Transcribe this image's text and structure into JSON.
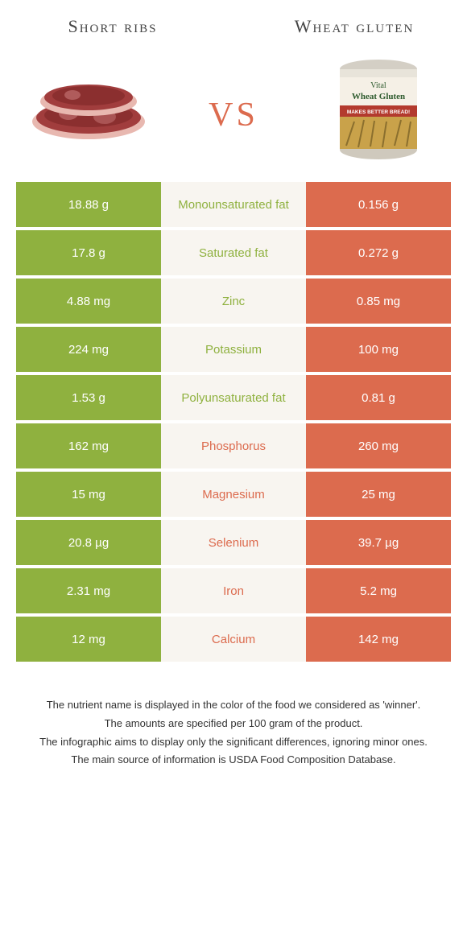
{
  "colors": {
    "left": "#8fb13f",
    "right": "#dc6b4e",
    "center_bg": "#f8f5f0",
    "vs": "#dc6b4e"
  },
  "header": {
    "left": "Short ribs",
    "right": "Wheat gluten",
    "vs": "vs"
  },
  "product_right": {
    "brand_top": "Vital",
    "brand_main": "Wheat Gluten",
    "banner": "MAKES BETTER BREAD!"
  },
  "rows": [
    {
      "left": "18.88 g",
      "label": "Monounsaturated fat",
      "right": "0.156 g",
      "winner": "left"
    },
    {
      "left": "17.8 g",
      "label": "Saturated fat",
      "right": "0.272 g",
      "winner": "left"
    },
    {
      "left": "4.88 mg",
      "label": "Zinc",
      "right": "0.85 mg",
      "winner": "left"
    },
    {
      "left": "224 mg",
      "label": "Potassium",
      "right": "100 mg",
      "winner": "left"
    },
    {
      "left": "1.53 g",
      "label": "Polyunsaturated fat",
      "right": "0.81 g",
      "winner": "left"
    },
    {
      "left": "162 mg",
      "label": "Phosphorus",
      "right": "260 mg",
      "winner": "right"
    },
    {
      "left": "15 mg",
      "label": "Magnesium",
      "right": "25 mg",
      "winner": "right"
    },
    {
      "left": "20.8 µg",
      "label": "Selenium",
      "right": "39.7 µg",
      "winner": "right"
    },
    {
      "left": "2.31 mg",
      "label": "Iron",
      "right": "5.2 mg",
      "winner": "right"
    },
    {
      "left": "12 mg",
      "label": "Calcium",
      "right": "142 mg",
      "winner": "right"
    }
  ],
  "footer": [
    "The nutrient name is displayed in the color of the food we considered as 'winner'.",
    "The amounts are specified per 100 gram of the product.",
    "The infographic aims to display only the significant differences, ignoring minor ones.",
    "The main source of information is USDA Food Composition Database."
  ]
}
